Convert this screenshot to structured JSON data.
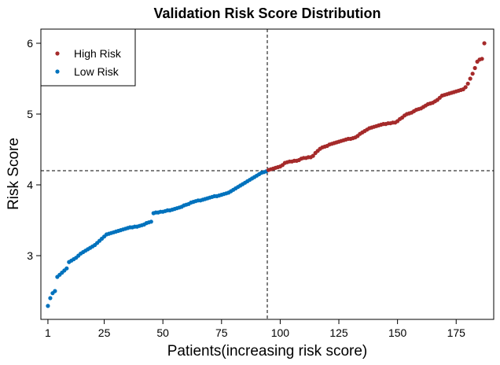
{
  "chart_data": {
    "type": "scatter",
    "title": "Validation Risk Score Distribution",
    "xlabel": "Patients(increasing risk score)",
    "ylabel": "Risk Score",
    "xlim": [
      -2,
      191
    ],
    "ylim": [
      2.1,
      6.2
    ],
    "x_ticks": [
      1,
      25,
      50,
      75,
      100,
      125,
      150,
      175
    ],
    "y_ticks": [
      3,
      4,
      5,
      6
    ],
    "cutoff_x": 94.5,
    "cutoff_y": 4.2,
    "legend": {
      "placement": "top-left",
      "entries": [
        "High Risk",
        "Low Risk"
      ]
    },
    "grid": false,
    "colors": {
      "High Risk": "#A52A2A",
      "Low Risk": "#0072BD"
    },
    "series": [
      {
        "name": "Low Risk",
        "x": [
          1,
          2,
          3,
          4,
          5,
          6,
          7,
          8,
          9,
          10,
          11,
          12,
          13,
          14,
          15,
          16,
          17,
          18,
          19,
          20,
          21,
          22,
          23,
          24,
          25,
          26,
          27,
          28,
          29,
          30,
          31,
          32,
          33,
          34,
          35,
          36,
          37,
          38,
          39,
          40,
          41,
          42,
          43,
          44,
          45,
          46,
          47,
          48,
          49,
          50,
          51,
          52,
          53,
          54,
          55,
          56,
          57,
          58,
          59,
          60,
          61,
          62,
          63,
          64,
          65,
          66,
          67,
          68,
          69,
          70,
          71,
          72,
          73,
          74,
          75,
          76,
          77,
          78,
          79,
          80,
          81,
          82,
          83,
          84,
          85,
          86,
          87,
          88,
          89,
          90,
          91,
          92,
          93,
          94
        ],
        "y": [
          2.29,
          2.4,
          2.47,
          2.5,
          2.7,
          2.73,
          2.76,
          2.79,
          2.82,
          2.91,
          2.93,
          2.95,
          2.97,
          3.0,
          3.03,
          3.05,
          3.07,
          3.09,
          3.11,
          3.13,
          3.15,
          3.18,
          3.21,
          3.24,
          3.27,
          3.3,
          3.31,
          3.32,
          3.33,
          3.34,
          3.35,
          3.36,
          3.37,
          3.38,
          3.39,
          3.4,
          3.4,
          3.41,
          3.41,
          3.42,
          3.43,
          3.44,
          3.46,
          3.47,
          3.48,
          3.6,
          3.61,
          3.61,
          3.62,
          3.62,
          3.63,
          3.64,
          3.64,
          3.65,
          3.66,
          3.67,
          3.68,
          3.69,
          3.71,
          3.72,
          3.73,
          3.75,
          3.76,
          3.77,
          3.78,
          3.78,
          3.79,
          3.8,
          3.81,
          3.82,
          3.83,
          3.84,
          3.84,
          3.85,
          3.86,
          3.87,
          3.88,
          3.89,
          3.91,
          3.93,
          3.95,
          3.97,
          3.99,
          4.01,
          4.03,
          4.05,
          4.07,
          4.09,
          4.11,
          4.13,
          4.15,
          4.17,
          4.18,
          4.19
        ]
      },
      {
        "name": "High Risk",
        "x": [
          95,
          96,
          97,
          98,
          99,
          100,
          101,
          102,
          103,
          104,
          105,
          106,
          107,
          108,
          109,
          110,
          111,
          112,
          113,
          114,
          115,
          116,
          117,
          118,
          119,
          120,
          121,
          122,
          123,
          124,
          125,
          126,
          127,
          128,
          129,
          130,
          131,
          132,
          133,
          134,
          135,
          136,
          137,
          138,
          139,
          140,
          141,
          142,
          143,
          144,
          145,
          146,
          147,
          148,
          149,
          150,
          151,
          152,
          153,
          154,
          155,
          156,
          157,
          158,
          159,
          160,
          161,
          162,
          163,
          164,
          165,
          166,
          167,
          168,
          169,
          170,
          171,
          172,
          173,
          174,
          175,
          176,
          177,
          178,
          179,
          180,
          181,
          182,
          183,
          184,
          185,
          186,
          187
        ],
        "y": [
          4.21,
          4.22,
          4.23,
          4.24,
          4.25,
          4.26,
          4.28,
          4.31,
          4.32,
          4.33,
          4.33,
          4.34,
          4.34,
          4.35,
          4.37,
          4.38,
          4.38,
          4.39,
          4.39,
          4.41,
          4.45,
          4.48,
          4.51,
          4.53,
          4.54,
          4.55,
          4.57,
          4.58,
          4.59,
          4.6,
          4.61,
          4.62,
          4.63,
          4.64,
          4.65,
          4.65,
          4.66,
          4.67,
          4.69,
          4.72,
          4.74,
          4.76,
          4.78,
          4.8,
          4.81,
          4.82,
          4.83,
          4.84,
          4.85,
          4.86,
          4.86,
          4.87,
          4.87,
          4.88,
          4.88,
          4.9,
          4.93,
          4.95,
          4.98,
          5.0,
          5.01,
          5.02,
          5.04,
          5.06,
          5.07,
          5.08,
          5.1,
          5.12,
          5.14,
          5.15,
          5.16,
          5.18,
          5.2,
          5.23,
          5.26,
          5.27,
          5.28,
          5.29,
          5.3,
          5.31,
          5.32,
          5.33,
          5.34,
          5.35,
          5.38,
          5.43,
          5.5,
          5.57,
          5.65,
          5.74,
          5.77,
          5.78,
          6.0
        ]
      }
    ]
  }
}
